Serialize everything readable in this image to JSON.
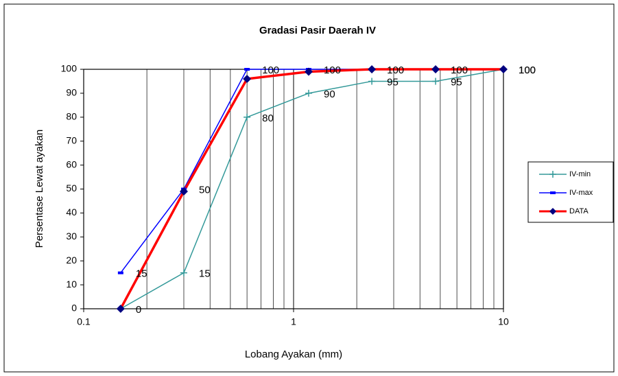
{
  "chart_data": {
    "type": "line",
    "title": "Gradasi Pasir Daerah IV",
    "xlabel": "Lobang Ayakan (mm)",
    "ylabel": "Persentase Lewat ayakan",
    "x": [
      0.15,
      0.3,
      0.6,
      1.18,
      2.36,
      4.75,
      10
    ],
    "xscale": "log",
    "xlim": [
      0.1,
      10
    ],
    "xticks": [
      0.1,
      1,
      10
    ],
    "ylim": [
      0,
      100
    ],
    "yticks": [
      0,
      10,
      20,
      30,
      40,
      50,
      60,
      70,
      80,
      90,
      100
    ],
    "grid": "x",
    "legend": "right",
    "series": [
      {
        "name": "IV-min",
        "color": "#339999",
        "marker": "plus",
        "data_labels": true,
        "values": [
          0,
          15,
          80,
          90,
          95,
          95,
          100
        ]
      },
      {
        "name": "IV-max",
        "color": "#0000ff",
        "marker": "dash",
        "data_labels": true,
        "values": [
          15,
          50,
          100,
          100,
          100,
          100,
          100
        ]
      },
      {
        "name": "DATA",
        "color": "#ff0000",
        "marker": "diamond",
        "marker_color": "#000080",
        "data_labels": false,
        "values": [
          0,
          49,
          96,
          99,
          100,
          100,
          100
        ]
      }
    ]
  }
}
